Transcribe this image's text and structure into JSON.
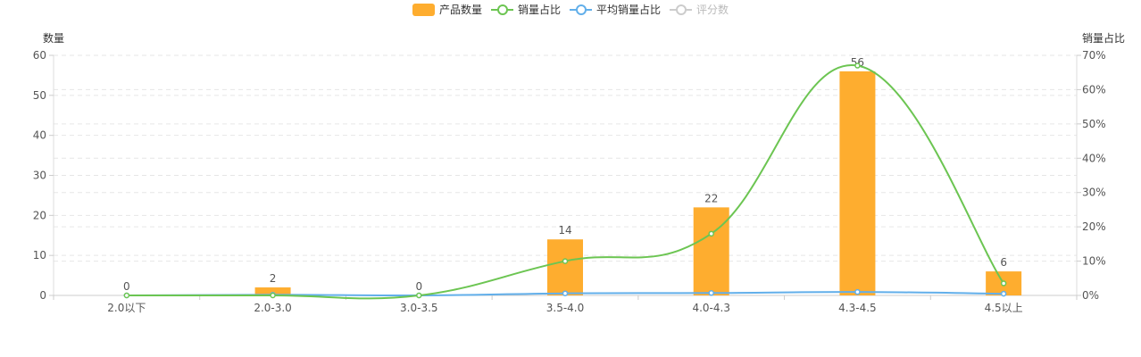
{
  "colors": {
    "bar": "#FEAD2F",
    "share_line": "#6CC552",
    "avg_line": "#62AFEA",
    "disabled": "#CCCCCC",
    "axis_text": "#555555",
    "grid": "#E6E6E6"
  },
  "legend": [
    {
      "label": "产品数量",
      "type": "bar",
      "color": "#FEAD2F",
      "active": true
    },
    {
      "label": "销量占比",
      "type": "line",
      "color": "#6CC552",
      "active": true
    },
    {
      "label": "平均销量占比",
      "type": "line",
      "color": "#62AFEA",
      "active": true
    },
    {
      "label": "评分数",
      "type": "line",
      "color": "#CCCCCC",
      "active": false
    }
  ],
  "chart_data": {
    "type": "bar",
    "categories": [
      "2.0以下",
      "2.0-3.0",
      "3.0-3.5",
      "3.5-4.0",
      "4.0-4.3",
      "4.3-4.5",
      "4.5以上"
    ],
    "y_left": {
      "label": "数量",
      "range": [
        0,
        60
      ],
      "ticks": [
        0,
        10,
        20,
        30,
        40,
        50,
        60
      ]
    },
    "y_right": {
      "label": "销量占比",
      "range": [
        0,
        70
      ],
      "ticks": [
        "0%",
        "10%",
        "20%",
        "30%",
        "40%",
        "50%",
        "60%",
        "70%"
      ],
      "unit": "%"
    },
    "grid": true,
    "legend_position": "top",
    "series": [
      {
        "name": "产品数量",
        "type": "bar",
        "axis": "left",
        "values": [
          0,
          2,
          0,
          14,
          22,
          56,
          6
        ],
        "data_labels": true
      },
      {
        "name": "销量占比",
        "type": "line",
        "axis": "right",
        "smooth": true,
        "values": [
          0,
          0,
          0,
          10,
          18,
          67,
          3.5
        ]
      },
      {
        "name": "平均销量占比",
        "type": "line",
        "axis": "right",
        "smooth": true,
        "values": [
          0,
          0.2,
          0,
          0.6,
          0.7,
          1.0,
          0.5
        ]
      }
    ]
  }
}
